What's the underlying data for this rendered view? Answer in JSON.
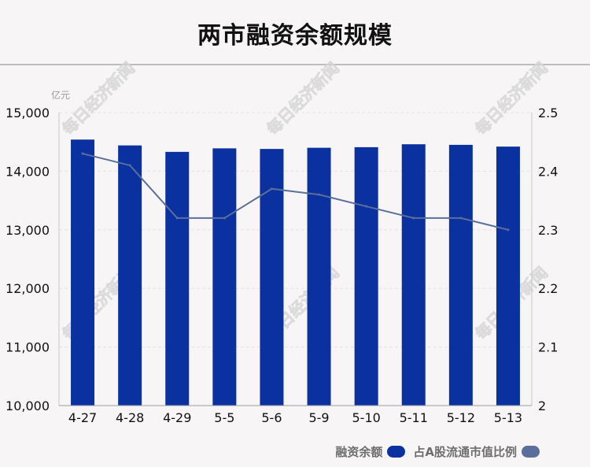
{
  "title": "两市融资余额规模",
  "watermark": "每日经济新闻",
  "colors": {
    "bar": "#0b31a0",
    "line": "#5a6f9b",
    "background": "#f8f5f7",
    "grid": "#e3e3e3"
  },
  "chart_data": {
    "type": "bar",
    "categories": [
      "4-27",
      "4-28",
      "4-29",
      "5-5",
      "5-6",
      "5-9",
      "5-10",
      "5-11",
      "5-12",
      "5-13"
    ],
    "series": [
      {
        "name": "融资余额",
        "type": "bar",
        "axis": "left",
        "values": [
          14540,
          14440,
          14330,
          14390,
          14380,
          14400,
          14410,
          14460,
          14450,
          14420
        ]
      },
      {
        "name": "占A股流通市值比例",
        "type": "line",
        "axis": "right",
        "values": [
          2.43,
          2.41,
          2.32,
          2.32,
          2.37,
          2.36,
          2.34,
          2.32,
          2.32,
          2.3
        ]
      }
    ],
    "left_axis": {
      "unit": "亿元",
      "ylim": [
        10000,
        15000
      ],
      "ticks": [
        10000,
        11000,
        12000,
        13000,
        14000,
        15000
      ],
      "tick_labels": [
        "10,000",
        "11,000",
        "12,000",
        "13,000",
        "14,000",
        "15,000"
      ]
    },
    "right_axis": {
      "ylim": [
        2,
        2.5
      ],
      "ticks": [
        2,
        2.1,
        2.2,
        2.3,
        2.4,
        2.5
      ],
      "tick_labels": [
        "2",
        "2.1",
        "2.2",
        "2.3",
        "2.4",
        "2.5"
      ]
    },
    "grid": true,
    "legend_position": "bottom-right"
  }
}
